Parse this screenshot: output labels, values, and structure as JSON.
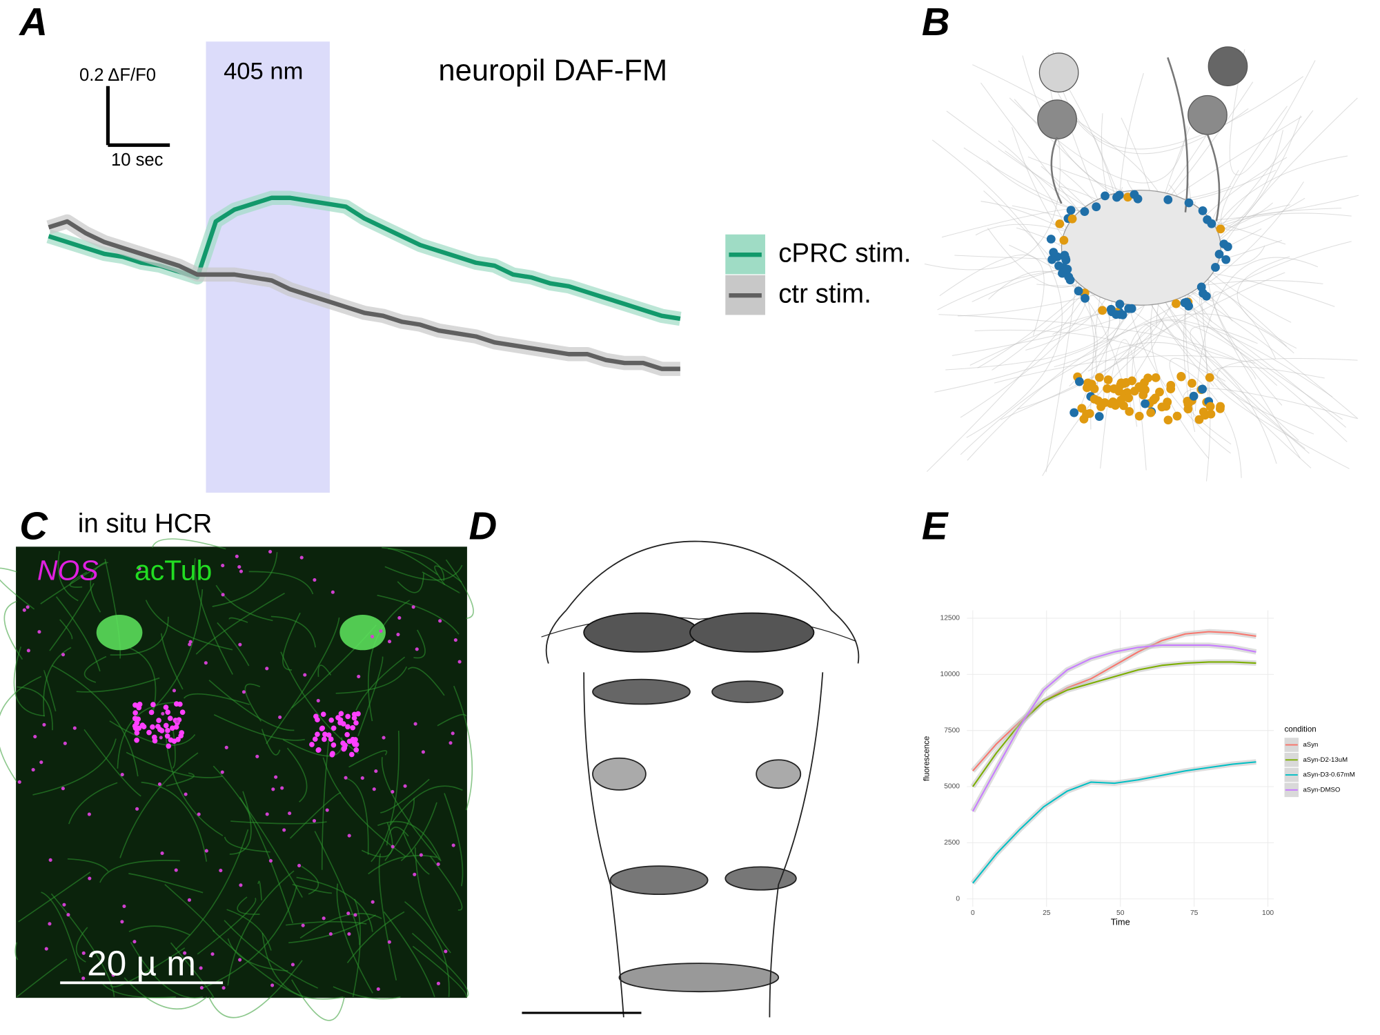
{
  "chart_data": [
    {
      "type": "line",
      "panel": "A",
      "title": "neuropil DAF-FM",
      "annotation": "405 nm",
      "stimulus": [
        25.4,
        45.4
      ],
      "scale_bar": {
        "x": 10,
        "x_label": "10 sec",
        "y": 0.2,
        "y_label": "0.2 ΔF/F0"
      },
      "x": [
        0,
        3,
        6,
        9,
        12,
        15,
        18,
        21,
        24,
        27,
        30,
        33,
        36,
        39,
        42,
        45,
        48,
        51,
        54,
        57,
        60,
        63,
        66,
        69,
        72,
        75,
        78,
        81,
        84,
        87,
        90,
        93,
        96,
        99,
        102
      ],
      "xlim": [
        0,
        102
      ],
      "ylim": [
        -0.77,
        0.76
      ],
      "legend": "right",
      "series": [
        {
          "name": "cPRC stim.",
          "color": "#12996b",
          "band_color": "#9fdcc5",
          "values": [
            0.1,
            0.08,
            0.06,
            0.04,
            0.03,
            0.01,
            0.0,
            -0.02,
            -0.04,
            0.15,
            0.19,
            0.21,
            0.23,
            0.23,
            0.22,
            0.21,
            0.2,
            0.16,
            0.13,
            0.1,
            0.07,
            0.05,
            0.03,
            0.01,
            0.0,
            -0.03,
            -0.04,
            -0.06,
            -0.07,
            -0.09,
            -0.11,
            -0.13,
            -0.15,
            -0.17,
            -0.18
          ]
        },
        {
          "name": "ctr stim.",
          "color": "#606060",
          "band_color": "#c8c8c8",
          "values": [
            0.13,
            0.15,
            0.11,
            0.08,
            0.06,
            0.04,
            0.02,
            0.0,
            -0.03,
            -0.03,
            -0.03,
            -0.04,
            -0.05,
            -0.08,
            -0.1,
            -0.12,
            -0.14,
            -0.16,
            -0.17,
            -0.19,
            -0.2,
            -0.22,
            -0.23,
            -0.24,
            -0.26,
            -0.27,
            -0.28,
            -0.29,
            -0.3,
            -0.3,
            -0.32,
            -0.33,
            -0.33,
            -0.35,
            -0.35
          ]
        }
      ]
    },
    {
      "type": "line",
      "panel": "E",
      "xlabel": "Time",
      "ylabel": "fluorescence",
      "legend_title": "condition",
      "legend": "right",
      "grid": true,
      "x": [
        0,
        8,
        16,
        24,
        32,
        40,
        48,
        56,
        64,
        72,
        80,
        88,
        96
      ],
      "xlim": [
        -2,
        102
      ],
      "ylim": [
        -350,
        12850
      ],
      "xticks": [
        0,
        25,
        50,
        75,
        100
      ],
      "yticks": [
        0,
        2500,
        5000,
        7500,
        10000,
        12500
      ],
      "series": [
        {
          "name": "aSyn",
          "color": "#F8766D",
          "values": [
            5700,
            6900,
            7900,
            8800,
            9400,
            9800,
            10400,
            11000,
            11500,
            11800,
            11900,
            11850,
            11700
          ]
        },
        {
          "name": "aSyn-D2-13uM",
          "color": "#7CAE00",
          "values": [
            5000,
            6500,
            7800,
            8800,
            9300,
            9600,
            9900,
            10200,
            10400,
            10500,
            10550,
            10550,
            10500
          ]
        },
        {
          "name": "aSyn-D3-0.67mM",
          "color": "#00BFC4",
          "values": [
            700,
            2000,
            3100,
            4100,
            4800,
            5200,
            5150,
            5300,
            5500,
            5700,
            5850,
            6000,
            6100
          ]
        },
        {
          "name": "aSyn-DMSO",
          "color": "#C77CFF",
          "values": [
            3900,
            5800,
            7700,
            9300,
            10200,
            10700,
            11000,
            11200,
            11300,
            11300,
            11300,
            11200,
            11000
          ]
        }
      ]
    }
  ],
  "panels": {
    "B": {
      "label": "B"
    },
    "C": {
      "label": "C",
      "title": "in situ HCR",
      "stain_1": "NOS",
      "stain_2": "acTub",
      "scale_bar": "20 µ m"
    },
    "D": {
      "label": "D"
    }
  }
}
